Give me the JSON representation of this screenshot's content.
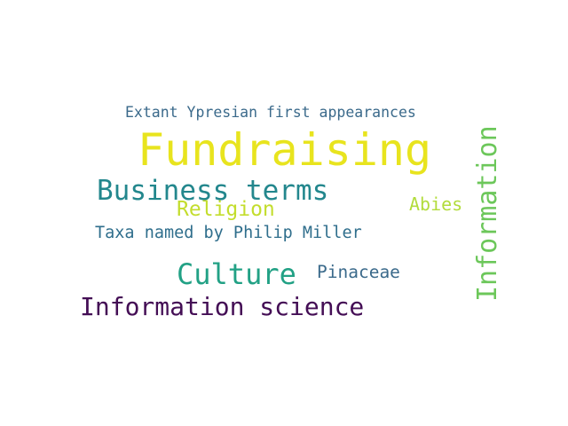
{
  "word_cloud": {
    "words": [
      {
        "key": "fundraising",
        "text": "Fundraising",
        "color": "#e8e41e"
      },
      {
        "key": "information",
        "text": "Information",
        "color": "#6cc75a"
      },
      {
        "key": "business_terms",
        "text": "Business terms",
        "color": "#23878d"
      },
      {
        "key": "culture",
        "text": "Culture",
        "color": "#22a185"
      },
      {
        "key": "information_science",
        "text": "Information science",
        "color": "#440e55"
      },
      {
        "key": "religion",
        "text": "Religion",
        "color": "#c3dd2d"
      },
      {
        "key": "abies",
        "text": "Abies",
        "color": "#b2dc3c"
      },
      {
        "key": "taxa_philip_miller",
        "text": "Taxa named by Philip Miller",
        "color": "#2f6e8c"
      },
      {
        "key": "pinaceae",
        "text": "Pinaceae",
        "color": "#3b6a8b"
      },
      {
        "key": "extant_ypresian",
        "text": "Extant Ypresian first appearances",
        "color": "#3b6a8b"
      }
    ]
  }
}
